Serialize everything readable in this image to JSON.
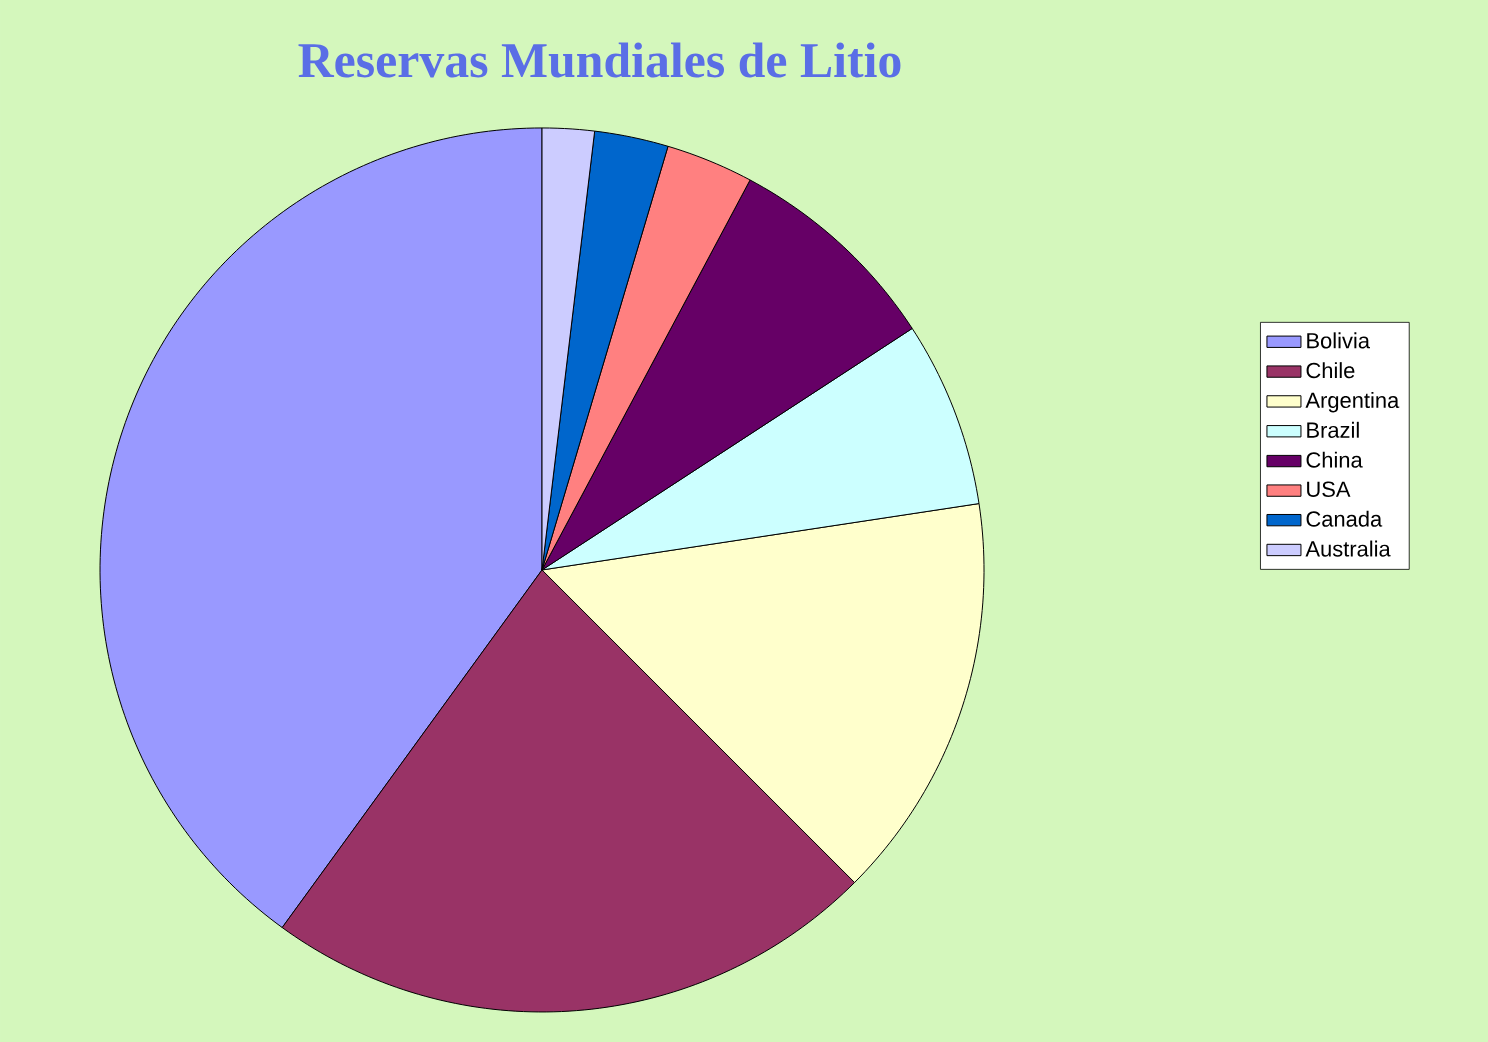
{
  "chart_data": {
    "type": "pie",
    "title": "Reservas Mundiales de Litio",
    "categories": [
      "Bolivia",
      "Chile",
      "Argentina",
      "Brazil",
      "China",
      "USA",
      "Canada",
      "Australia"
    ],
    "values": [
      40,
      22.5,
      14.9,
      6.8,
      8.0,
      3.2,
      2.7,
      1.9
    ],
    "colors": [
      "#9999ff",
      "#993366",
      "#ffffcc",
      "#ccffff",
      "#660066",
      "#ff8080",
      "#0066cc",
      "#ccccff"
    ],
    "legend": "right"
  }
}
